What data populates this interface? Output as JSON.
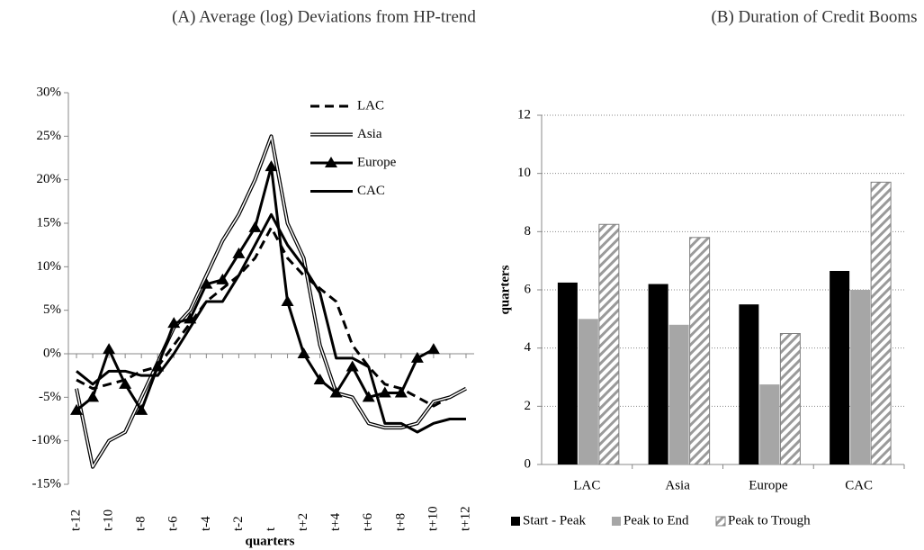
{
  "chart_data": [
    {
      "type": "line",
      "title": "(A) Average (log) Deviations from HP-trend",
      "x_label": "quarters",
      "categories": [
        "t-12",
        null,
        "t-10",
        null,
        "t-8",
        null,
        "t-6",
        null,
        "t-4",
        null,
        "t-2",
        null,
        "t",
        null,
        "t+2",
        null,
        "t+4",
        null,
        "t+6",
        null,
        "t+8",
        null,
        "t+10",
        null,
        "t+12"
      ],
      "ylim": [
        -15,
        30
      ],
      "yticks": [
        {
          "value": -15,
          "label": "-15%"
        },
        {
          "value": -10,
          "label": "-10%"
        },
        {
          "value": -5,
          "label": "-5%"
        },
        {
          "value": 0,
          "label": "0%"
        },
        {
          "value": 5,
          "label": "5%"
        },
        {
          "value": 10,
          "label": "10%"
        },
        {
          "value": 15,
          "label": "15%"
        },
        {
          "value": 20,
          "label": "20%"
        },
        {
          "value": 25,
          "label": "25%"
        },
        {
          "value": 30,
          "label": "30%"
        }
      ],
      "legend": "top-right",
      "series": [
        {
          "name": "LAC",
          "color": "#000000",
          "style": "dashed",
          "values": [
            -3,
            -4,
            -3.5,
            -3,
            -2,
            -1.5,
            1,
            3.5,
            6,
            7.5,
            9,
            11,
            14.5,
            11,
            9,
            7.5,
            6,
            1,
            -1.5,
            -3.5,
            -4,
            -5,
            -6,
            -5,
            -4
          ]
        },
        {
          "name": "Asia",
          "color": "#000000",
          "style": "double",
          "values": [
            -4,
            -13,
            -10,
            -9,
            -5,
            -1,
            3,
            5,
            9,
            13,
            16,
            20,
            25,
            15,
            11,
            1,
            -4.5,
            -5,
            -8,
            -8.5,
            -8.5,
            -8,
            -5.5,
            -5,
            -4
          ]
        },
        {
          "name": "Europe",
          "color": "#000000",
          "style": "solid",
          "marker": "triangle",
          "values": [
            -6.5,
            -5,
            0.5,
            -3.5,
            -6.5,
            -1.5,
            3.5,
            4,
            8,
            8.5,
            11.5,
            14.5,
            21.5,
            6,
            0,
            -3,
            -4.5,
            -1.5,
            -5,
            -4.5,
            -4.5,
            -0.5,
            0.5,
            null,
            null
          ]
        },
        {
          "name": "CAC",
          "color": "#000000",
          "style": "solid",
          "values": [
            -2,
            -3.5,
            -2,
            -2,
            -2.5,
            -2.5,
            0,
            3,
            6,
            6,
            9,
            12.5,
            16,
            12.5,
            10,
            7,
            -0.5,
            -0.5,
            -1.5,
            -8,
            -8,
            -9,
            -8,
            -7.5,
            -7.5
          ]
        }
      ]
    },
    {
      "type": "bar",
      "title": "(B) Duration of Credit Booms",
      "y_label": "quarters",
      "categories": [
        "LAC",
        "Asia",
        "Europe",
        "CAC"
      ],
      "ylim": [
        0,
        12
      ],
      "yticks": [
        0,
        2,
        4,
        6,
        8,
        10,
        12
      ],
      "grid": true,
      "legend": "bottom",
      "series": [
        {
          "name": "Start - Peak",
          "color": "#000000",
          "values": [
            6.25,
            6.2,
            5.5,
            6.65
          ]
        },
        {
          "name": "Peak to End",
          "color": "#a6a6a6",
          "values": [
            5,
            4.8,
            2.75,
            6
          ]
        },
        {
          "name": "Peak to Trough",
          "color": "#808080",
          "pattern": "hatch",
          "values": [
            8.25,
            7.8,
            4.5,
            9.7
          ]
        }
      ]
    }
  ]
}
